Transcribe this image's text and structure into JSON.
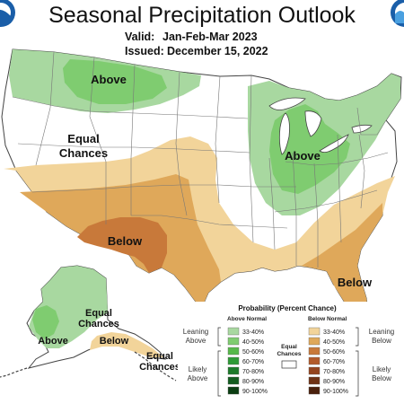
{
  "header": {
    "title": "Seasonal Precipitation Outlook",
    "valid_label": "Valid:",
    "valid_value": "Jan-Feb-Mar 2023",
    "issued_label": "Issued:",
    "issued_value": "December 15, 2022"
  },
  "map_labels": {
    "above_nw": "Above",
    "equal_chances_w_line1": "Equal",
    "equal_chances_w_line2": "Chances",
    "above_oh_valley": "Above",
    "below_sw": "Below",
    "below_se": "Below",
    "ak_above": "Above",
    "ak_equal_line1": "Equal",
    "ak_equal_line2": "Chances",
    "ak_below": "Below",
    "ak_equal2_line1": "Equal",
    "ak_equal2_line2": "Chances"
  },
  "legend": {
    "title": "Probability (Percent Chance)",
    "above_header": "Above Normal",
    "below_header": "Below Normal",
    "equal_line1": "Equal",
    "equal_line2": "Chances",
    "leaning_above_1": "Leaning",
    "leaning_above_2": "Above",
    "likely_above_1": "Likely",
    "likely_above_2": "Above",
    "leaning_below_1": "Leaning",
    "leaning_below_2": "Below",
    "likely_below_1": "Likely",
    "likely_below_2": "Below",
    "above_bins": [
      {
        "label": "33-40%",
        "color": "#a8d8a0"
      },
      {
        "label": "40-50%",
        "color": "#7fcc70"
      },
      {
        "label": "50-60%",
        "color": "#56b84a"
      },
      {
        "label": "60-70%",
        "color": "#2e9a36"
      },
      {
        "label": "70-80%",
        "color": "#1c7a2a"
      },
      {
        "label": "80-90%",
        "color": "#125c1f"
      },
      {
        "label": "90-100%",
        "color": "#0a3d12"
      }
    ],
    "below_bins": [
      {
        "label": "33-40%",
        "color": "#f2d49a"
      },
      {
        "label": "40-50%",
        "color": "#dfa85a"
      },
      {
        "label": "50-60%",
        "color": "#c8793a"
      },
      {
        "label": "60-70%",
        "color": "#b25a2a"
      },
      {
        "label": "70-80%",
        "color": "#94441e"
      },
      {
        "label": "80-90%",
        "color": "#6f3215"
      },
      {
        "label": "90-100%",
        "color": "#4a200c"
      }
    ]
  }
}
